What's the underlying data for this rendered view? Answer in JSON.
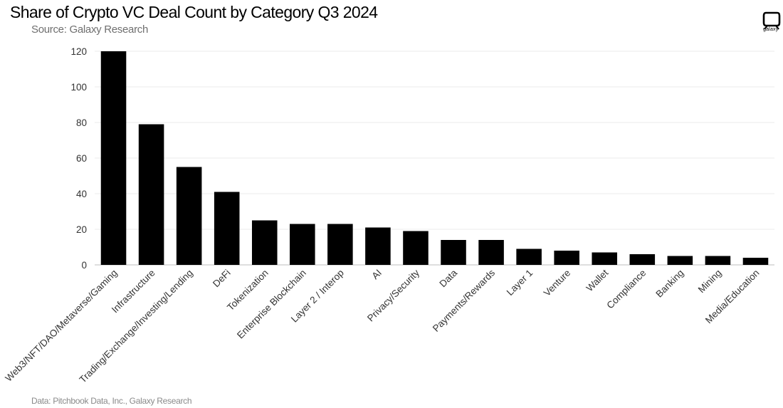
{
  "header": {
    "title": "Share of Crypto VC Deal Count by Category Q3 2024",
    "subtitle": "Source: Galaxy Research",
    "logo_text": "galaxy"
  },
  "footer": {
    "note": "Data: Pitchbook Data, Inc., Galaxy Research"
  },
  "chart_data": {
    "type": "bar",
    "title": "Share of Crypto VC Deal Count by Category Q3 2024",
    "xlabel": "",
    "ylabel": "",
    "ylim": [
      0,
      120
    ],
    "yticks": [
      0,
      20,
      40,
      60,
      80,
      100,
      120
    ],
    "grid": true,
    "bar_color": "#000000",
    "categories": [
      "Web3/NFT/DAO/Metaverse/Gaming",
      "Infrastructure",
      "Trading/Exchange/Investing/Lending",
      "DeFi",
      "Tokenization",
      "Enterprise Blockchain",
      "Layer 2 / Interop",
      "AI",
      "Privacy/Security",
      "Data",
      "Payments/Rewards",
      "Layer 1",
      "Venture",
      "Wallet",
      "Compliance",
      "Banking",
      "Mining",
      "Media/Education"
    ],
    "values": [
      120,
      79,
      55,
      41,
      25,
      23,
      23,
      21,
      19,
      14,
      14,
      9,
      8,
      7,
      6,
      5,
      5,
      4
    ]
  }
}
